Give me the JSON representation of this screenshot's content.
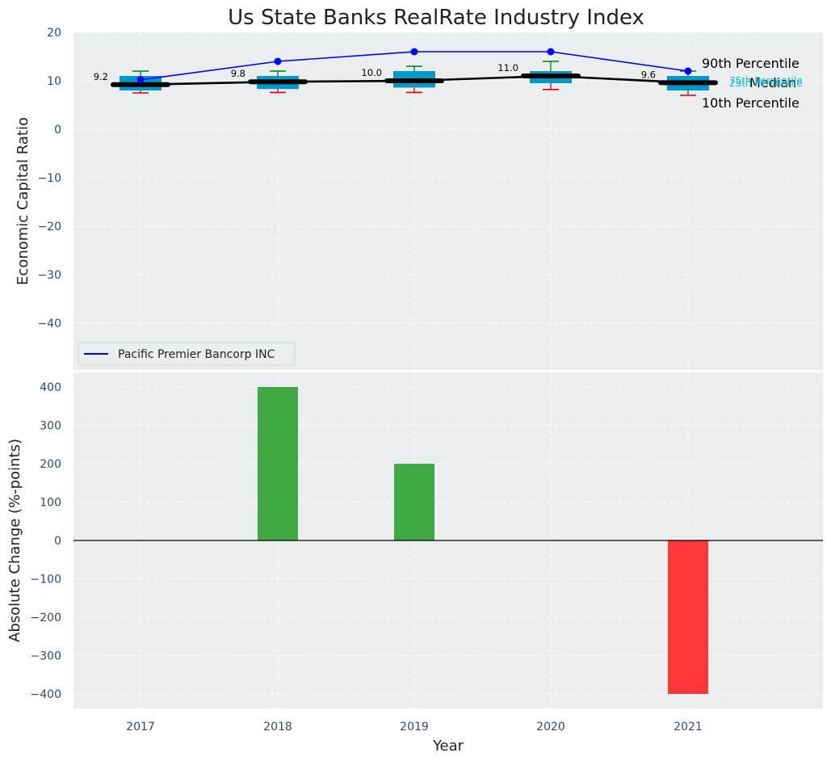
{
  "chart_data": [
    {
      "type": "box",
      "title": "Us State Banks RealRate Industry Index",
      "xlabel": "",
      "ylabel": "Economic Capital Ratio",
      "ylim": [
        -50,
        20
      ],
      "yticks": [
        20,
        10,
        0,
        -10,
        -20,
        -30,
        -40
      ],
      "ytick_labels": [
        "20",
        "10",
        "0",
        "−10",
        "−20",
        "−30",
        "−40"
      ],
      "categories": [
        "2017",
        "2018",
        "2019",
        "2020",
        "2021"
      ],
      "boxes": [
        {
          "year": "2017",
          "p10": 7.5,
          "p25": 8.0,
          "median": 9.2,
          "p75": 11.0,
          "p90": 12.0,
          "median_label": "9.2"
        },
        {
          "year": "2018",
          "p10": 7.6,
          "p25": 8.3,
          "median": 9.8,
          "p75": 11.0,
          "p90": 12.0,
          "median_label": "9.8"
        },
        {
          "year": "2019",
          "p10": 7.6,
          "p25": 8.6,
          "median": 10.0,
          "p75": 12.0,
          "p90": 13.0,
          "median_label": "10.0"
        },
        {
          "year": "2020",
          "p10": 8.2,
          "p25": 9.5,
          "median": 11.0,
          "p75": 12.0,
          "p90": 14.0,
          "median_label": "11.0"
        },
        {
          "year": "2021",
          "p10": 7.0,
          "p25": 8.0,
          "median": 9.6,
          "p75": 11.0,
          "p90": 12.0,
          "median_label": "9.6"
        }
      ],
      "series": [
        {
          "name": "Pacific Premier Bancorp INC",
          "values": [
            10.2,
            14.0,
            16.0,
            16.0,
            12.0
          ],
          "color": "#0000ff"
        },
        {
          "name": "Median",
          "values": [
            9.2,
            9.8,
            10.0,
            11.0,
            9.6
          ],
          "color": "#000000"
        }
      ],
      "annotations": {
        "p90": "90th Percentile",
        "median": "Median",
        "p10": "10th Percentile",
        "p75": "75th Percentile",
        "p25": "25th Percentile"
      },
      "legend": {
        "placement": "lower-left",
        "entries": [
          "Pacific Premier Bancorp INC"
        ]
      },
      "grid": true,
      "colors": {
        "box": "#0099cc",
        "whisker_top": "#008000",
        "whisker_bottom": "#e00000",
        "bg": "#eaeeee",
        "small_label": "#17becf"
      }
    },
    {
      "type": "bar",
      "xlabel": "Year",
      "ylabel": "Absolute Change (%-points)",
      "ylim": [
        -435,
        435
      ],
      "yticks": [
        400,
        300,
        200,
        100,
        0,
        -100,
        -200,
        -300,
        -400
      ],
      "ytick_labels": [
        "400",
        "300",
        "200",
        "100",
        "0",
        "−100",
        "−200",
        "−300",
        "−400"
      ],
      "categories": [
        "2017",
        "2018",
        "2019",
        "2020",
        "2021"
      ],
      "values": [
        0,
        400,
        200,
        0,
        -400
      ],
      "colors": {
        "positive": "#2ca02c",
        "negative": "#ff2222"
      },
      "grid": true
    }
  ]
}
